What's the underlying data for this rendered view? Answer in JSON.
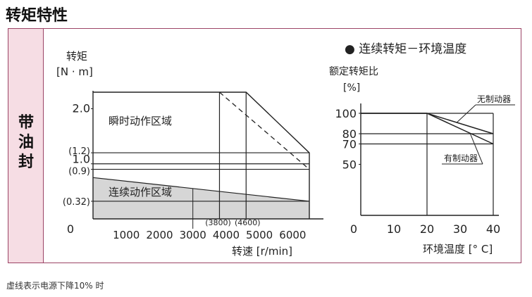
{
  "page": {
    "title": "转矩特性",
    "side_label": "带油封",
    "footnote": "虚线表示电源下降10% 时"
  },
  "chart_data": [
    {
      "type": "area",
      "ylabel_line1": "转矩",
      "ylabel_line2": "[N · m]",
      "xlabel": "转速 [r/min]",
      "xlim": [
        0,
        6500
      ],
      "ylim": [
        0,
        2.3
      ],
      "x_ticks": [
        {
          "v": 1000,
          "label": "1000"
        },
        {
          "v": 2000,
          "label": "2000"
        },
        {
          "v": 3000,
          "label": "3000"
        },
        {
          "v": 4000,
          "label": "4000"
        },
        {
          "v": 5000,
          "label": "5000"
        },
        {
          "v": 6000,
          "label": "6000"
        }
      ],
      "x_origin_label": "0",
      "y_ticks": [
        {
          "v": 2.0,
          "label": "2.0"
        },
        {
          "v": 1.2,
          "label": "(1.2)"
        },
        {
          "v": 1.0,
          "label": "1.0"
        },
        {
          "v": 0.9,
          "label": "(0.9)"
        },
        {
          "v": 0.32,
          "label": "(0.32)"
        }
      ],
      "x_markers": [
        {
          "v": 3800,
          "label": "(3800)"
        },
        {
          "v": 4600,
          "label": "(4600)"
        }
      ],
      "series": [
        {
          "name": "瞬时动作区域",
          "style": "solid",
          "points": [
            [
              0,
              2.3
            ],
            [
              4600,
              2.3
            ],
            [
              6500,
              1.2
            ],
            [
              6500,
              0
            ]
          ]
        },
        {
          "name": "",
          "style": "dashed",
          "points": [
            [
              3800,
              2.3
            ],
            [
              6500,
              0.9
            ]
          ]
        },
        {
          "name": "连续动作区域",
          "style": "filled",
          "points": [
            [
              0,
              0.75
            ],
            [
              6500,
              0.32
            ],
            [
              6500,
              0
            ],
            [
              0,
              0
            ]
          ]
        }
      ],
      "region_labels": [
        "瞬时动作区域",
        "连续动作区域"
      ],
      "colors": {
        "fill": "#d6d6d6",
        "line": "#222222"
      }
    },
    {
      "type": "line",
      "legend_title": "● 连续转矩－环境温度",
      "ylabel_line1": "额定转矩比",
      "ylabel_line2": "[%]",
      "xlabel": "环境温度 [° C]",
      "xlim": [
        0,
        40
      ],
      "ylim": [
        0,
        100
      ],
      "x_ticks": [
        {
          "v": 0,
          "label": "0"
        },
        {
          "v": 10,
          "label": "10"
        },
        {
          "v": 20,
          "label": "20"
        },
        {
          "v": 30,
          "label": "30"
        },
        {
          "v": 40,
          "label": "40"
        }
      ],
      "y_ticks": [
        {
          "v": 100,
          "label": "100"
        },
        {
          "v": 80,
          "label": "80"
        },
        {
          "v": 70,
          "label": "70"
        },
        {
          "v": 50,
          "label": "50"
        }
      ],
      "series": [
        {
          "name": "无制动器",
          "values": [
            [
              0,
              100
            ],
            [
              20,
              100
            ],
            [
              40,
              80
            ]
          ]
        },
        {
          "name": "有制动器",
          "values": [
            [
              0,
              100
            ],
            [
              20,
              100
            ],
            [
              40,
              70
            ]
          ]
        }
      ],
      "colors": {
        "line": "#222222"
      }
    }
  ]
}
